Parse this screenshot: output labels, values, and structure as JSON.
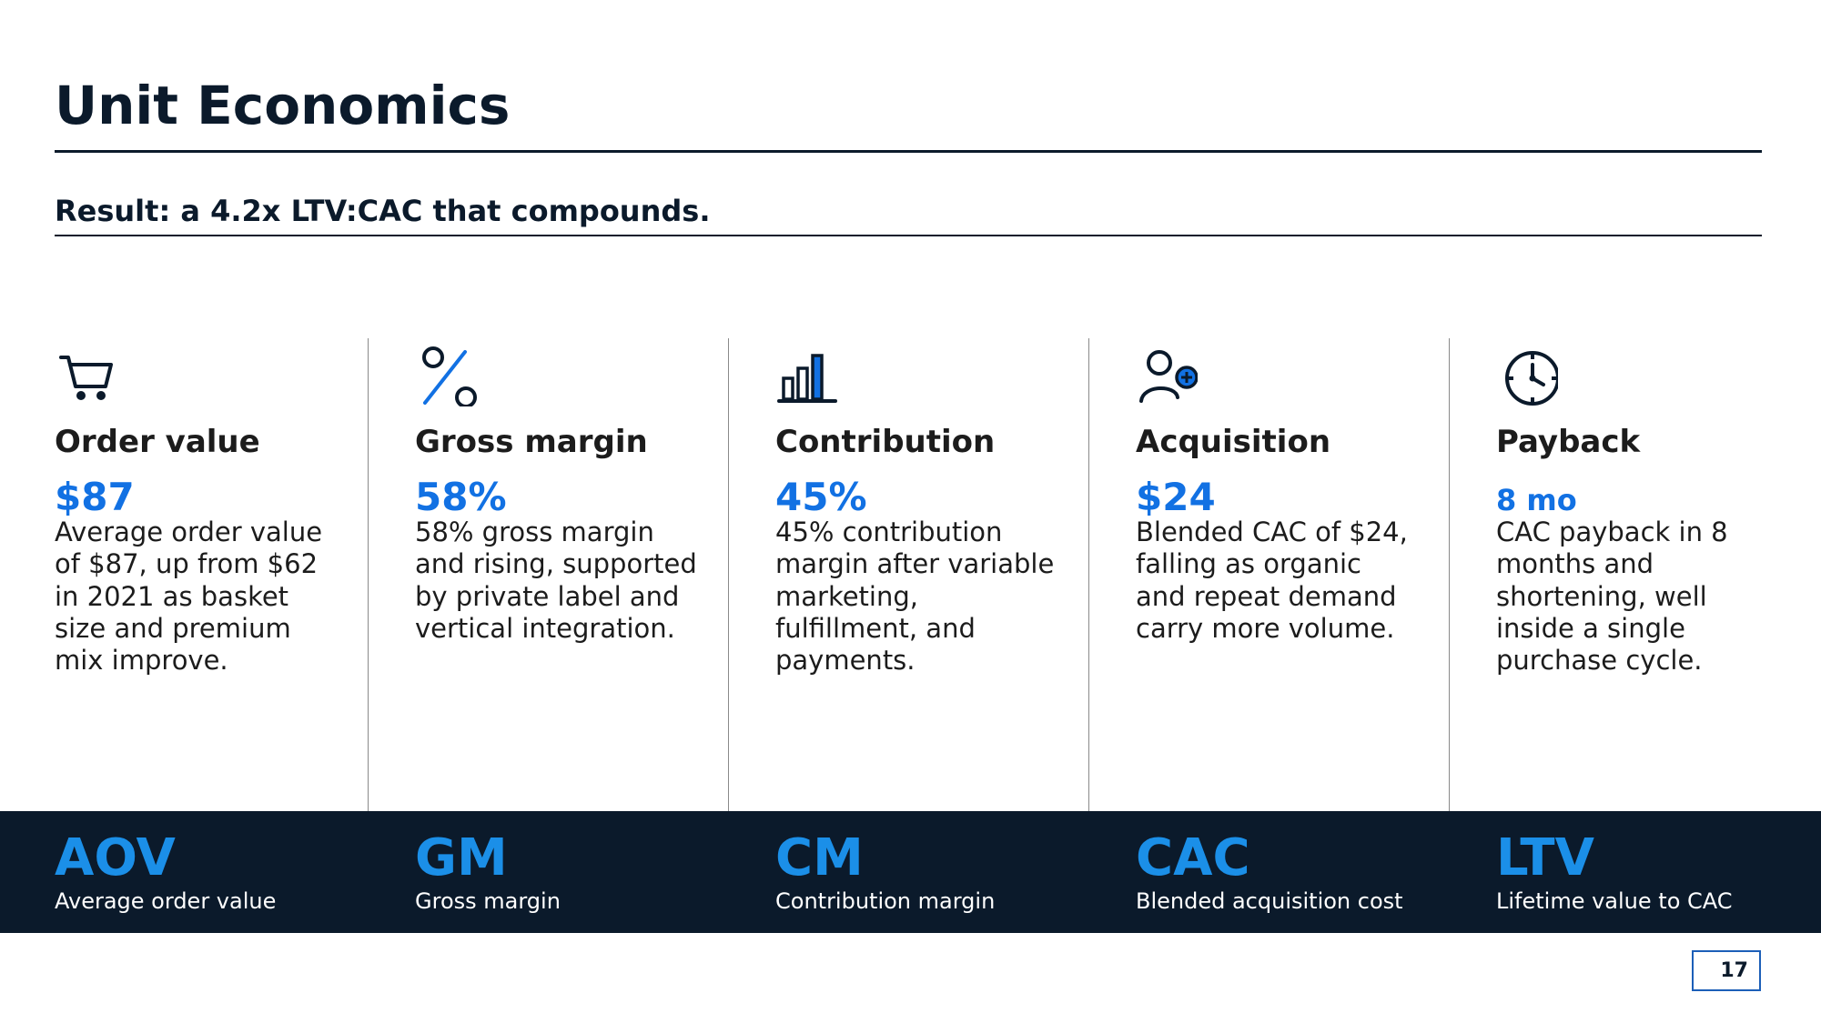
{
  "slide": {
    "title": "Unit Economics",
    "subtitle": "Result: a 4.2x LTV:CAC that compounds.",
    "page_number": "17"
  },
  "columns": [
    {
      "icon": "cart-icon",
      "heading": "Order value",
      "metric": "$87",
      "description": "Average order value of $87, up from $62 in 2021 as basket size and premium mix improve."
    },
    {
      "icon": "percent-icon",
      "heading": "Gross margin",
      "metric": "58%",
      "description": "58% gross margin and rising, supported by private label and vertical integration."
    },
    {
      "icon": "bar-chart-icon",
      "heading": "Contribution",
      "metric": "45%",
      "description": "45% contribution margin after variable marketing, fulfillment, and payments."
    },
    {
      "icon": "user-add-icon",
      "heading": "Acquisition",
      "metric": "$24",
      "description": "Blended CAC of $24, falling as organic and repeat demand carry more volume."
    },
    {
      "icon": "clock-icon",
      "heading": "Payback",
      "metric": "8 mo",
      "description": "CAC payback in 8 months and shortening, well inside a single purchase cycle."
    }
  ],
  "band": [
    {
      "abbr": "AOV",
      "label": "Average order value"
    },
    {
      "abbr": "GM",
      "label": "Gross margin"
    },
    {
      "abbr": "CM",
      "label": "Contribution margin"
    },
    {
      "abbr": "CAC",
      "label": "Blended acquisition cost"
    },
    {
      "abbr": "LTV",
      "label": "Lifetime value to CAC"
    }
  ],
  "colors": {
    "navy": "#0b1a2b",
    "accent_blue": "#1271e3",
    "band_blue": "#1b8fe8"
  }
}
